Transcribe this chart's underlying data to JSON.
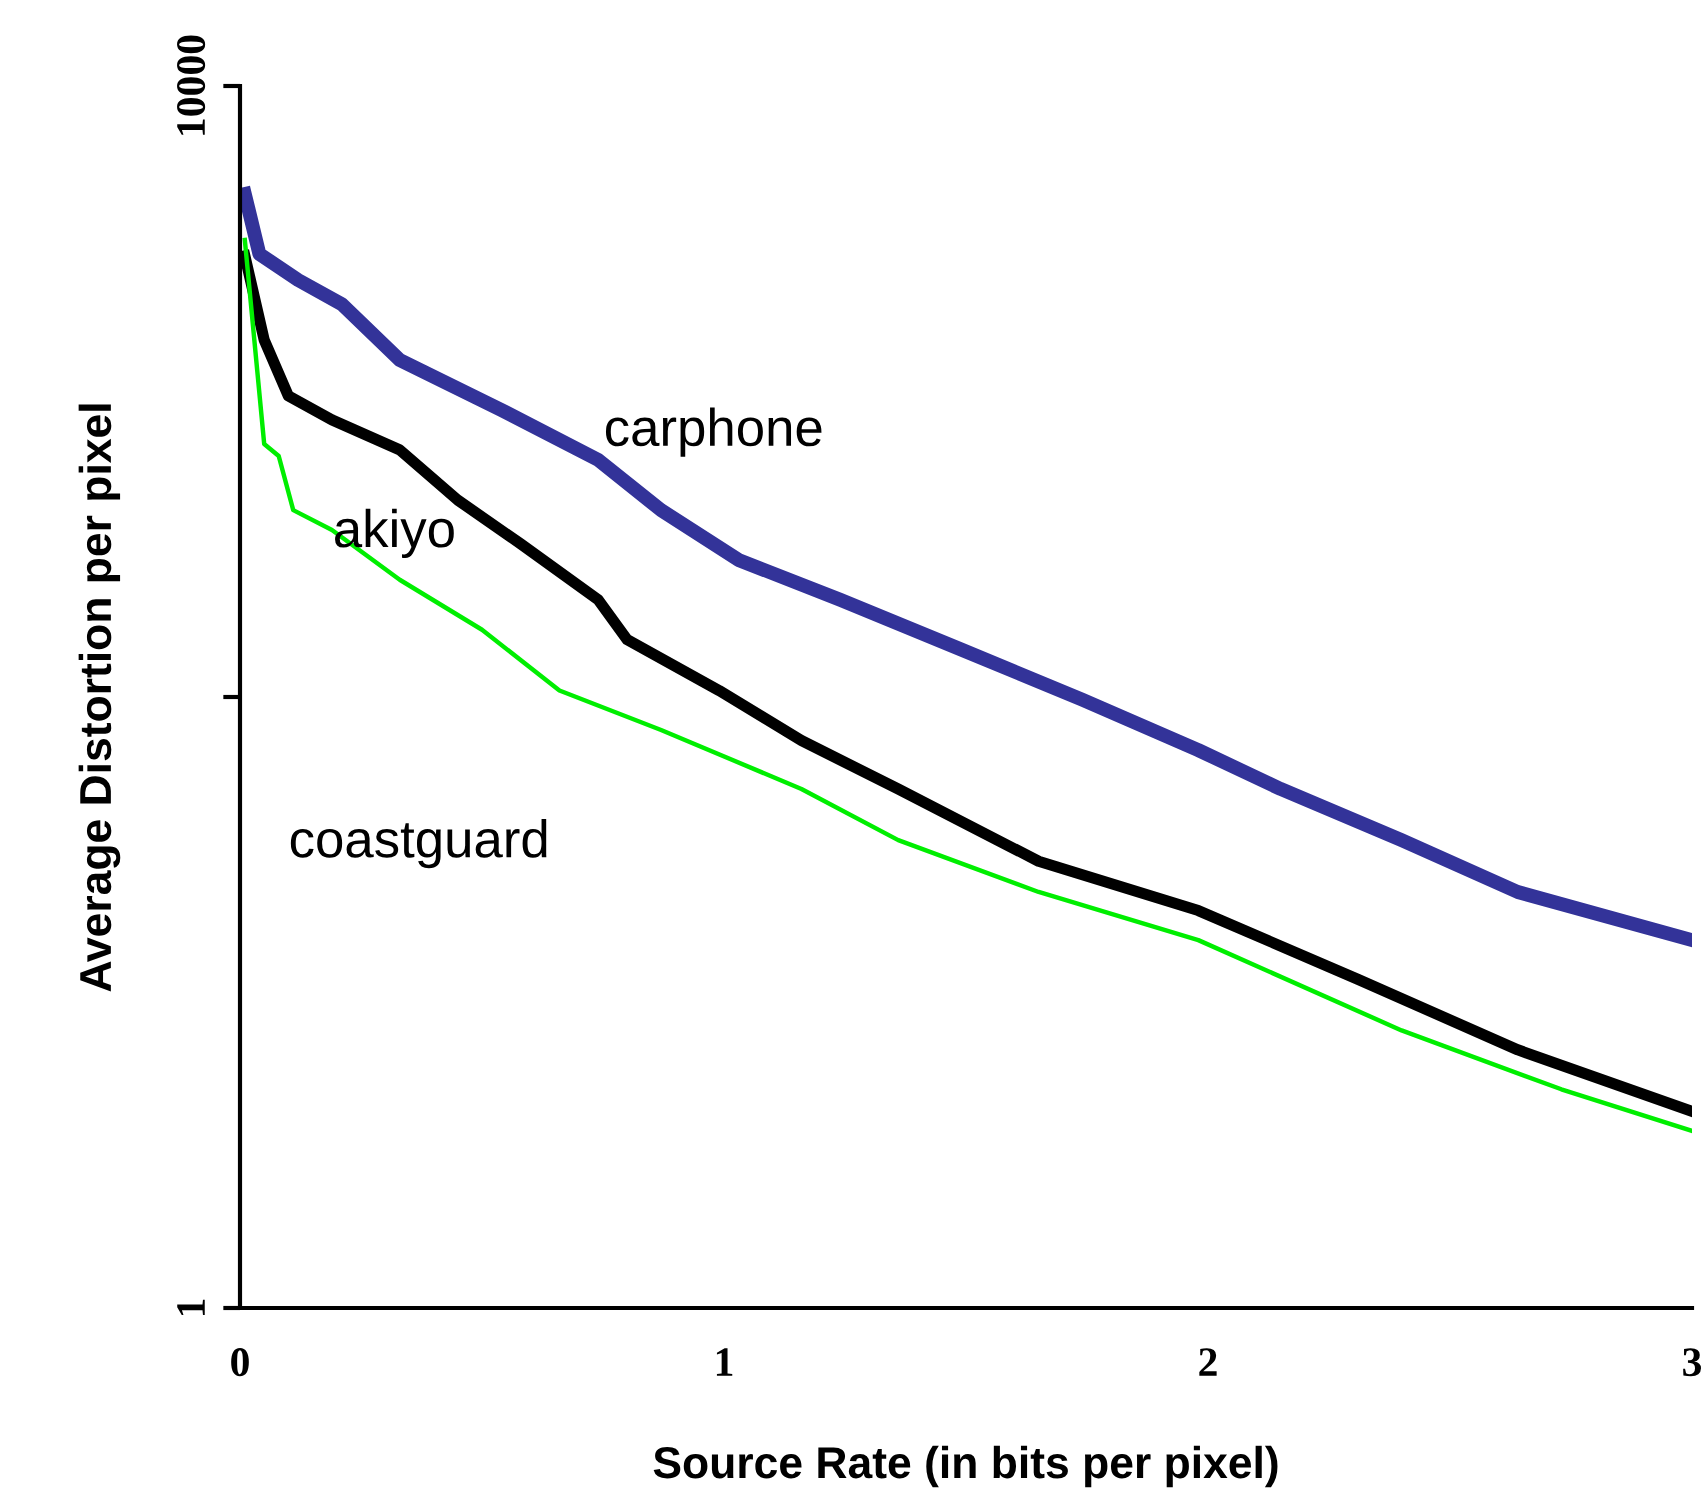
{
  "chart_data": {
    "type": "line",
    "xlabel": "Source Rate (in bits per pixel)",
    "ylabel": "Average Distortion per pixel",
    "log": "y",
    "xlim": [
      0,
      3
    ],
    "ylim": [
      1,
      10000
    ],
    "xticks": [
      0,
      1,
      2,
      3
    ],
    "yticks": [
      1,
      {
        "value": 100,
        "label": null
      },
      10000
    ],
    "grid": false,
    "legend": false,
    "marker": "none",
    "line_style": "solid",
    "series": [
      {
        "name": "carphone",
        "color": "#333399",
        "x": [
          0.01,
          0.04,
          0.12,
          0.21,
          0.33,
          0.54,
          0.74,
          0.87,
          1.03,
          1.24,
          1.49,
          1.74,
          1.98,
          2.15,
          2.4,
          2.64,
          3.0
        ],
        "values": [
          4430,
          2820,
          2317,
          1933,
          1268,
          870,
          597,
          409,
          281,
          208,
          143,
          98,
          67,
          50,
          34,
          23,
          16
        ]
      },
      {
        "name": "akiyo",
        "color": "#000000",
        "x": [
          0.01,
          0.05,
          0.1,
          0.19,
          0.33,
          0.45,
          0.58,
          0.74,
          0.8,
          0.99,
          1.16,
          1.36,
          1.65,
          1.98,
          2.31,
          2.64,
          3.0
        ],
        "values": [
          2780,
          1475,
          967,
          807,
          644,
          441,
          317,
          208,
          154,
          105,
          72,
          50,
          29,
          20,
          11.9,
          7.0,
          4.4
        ]
      },
      {
        "name": "coastguard",
        "color": "#00ee00",
        "x": [
          0.01,
          0.05,
          0.08,
          0.11,
          0.19,
          0.33,
          0.5,
          0.66,
          0.87,
          1.16,
          1.36,
          1.65,
          1.98,
          2.4,
          2.73,
          3.0
        ],
        "values": [
          3133,
          673,
          615,
          409,
          352,
          242,
          166,
          105,
          78,
          50,
          34,
          23,
          16,
          8.1,
          5.2,
          3.8
        ]
      }
    ]
  }
}
